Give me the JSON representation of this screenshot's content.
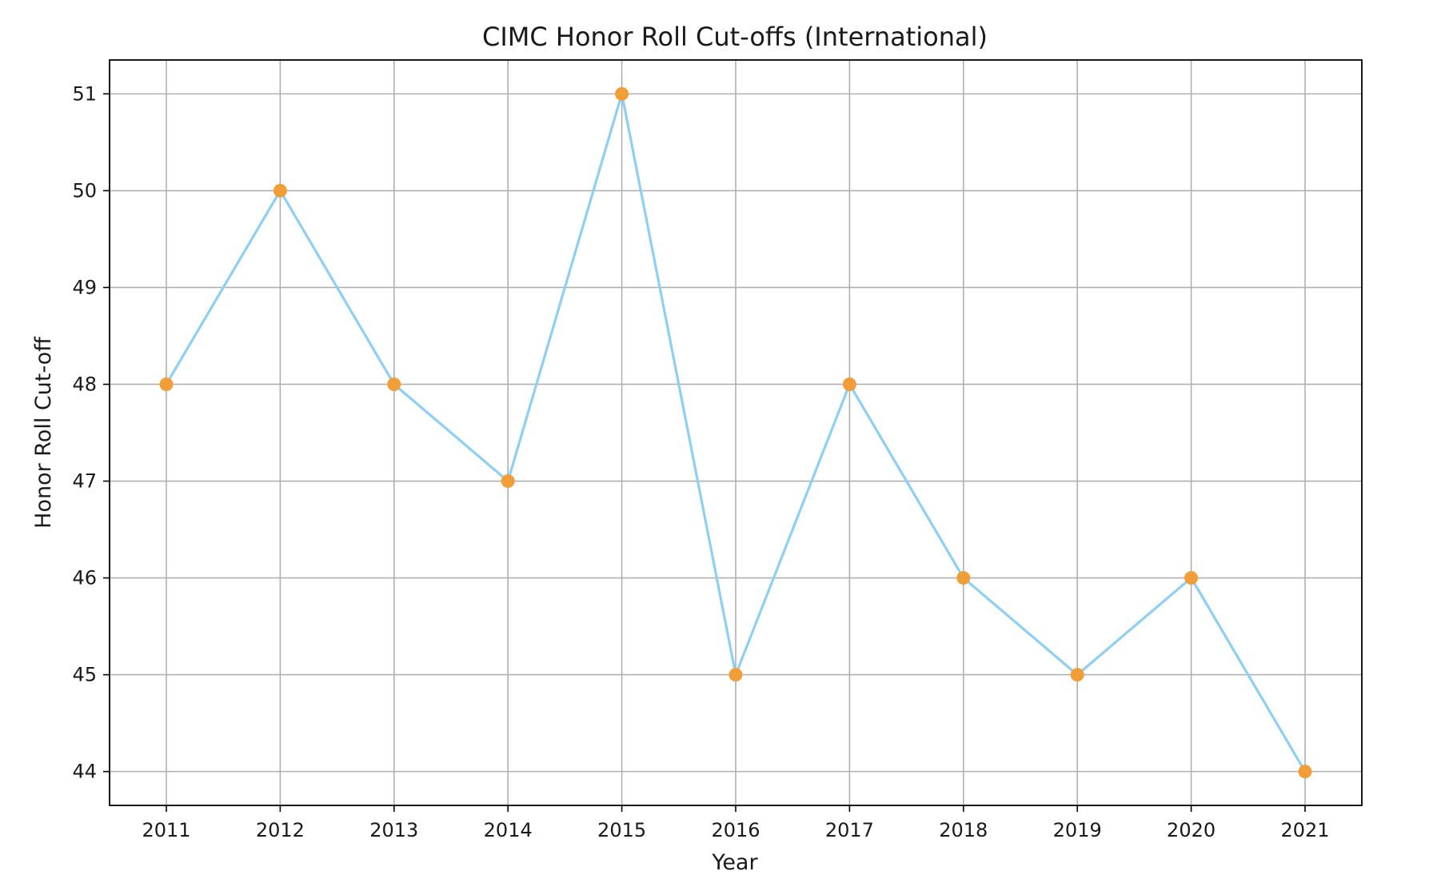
{
  "chart_data": {
    "type": "line",
    "title": "CIMC Honor Roll Cut-offs (International)",
    "xlabel": "Year",
    "ylabel": "Honor Roll Cut-off",
    "categories": [
      "2011",
      "2012",
      "2013",
      "2014",
      "2015",
      "2016",
      "2017",
      "2018",
      "2019",
      "2020",
      "2021"
    ],
    "series": [
      {
        "values": [
          48,
          50,
          48,
          47,
          51,
          45,
          48,
          46,
          45,
          46,
          44
        ]
      }
    ],
    "yticks": [
      44,
      45,
      46,
      47,
      48,
      49,
      50,
      51
    ],
    "ylim": [
      43.65,
      51.35
    ],
    "grid": true,
    "line_color": "#8ecff5",
    "marker_color": "#f29e38"
  }
}
